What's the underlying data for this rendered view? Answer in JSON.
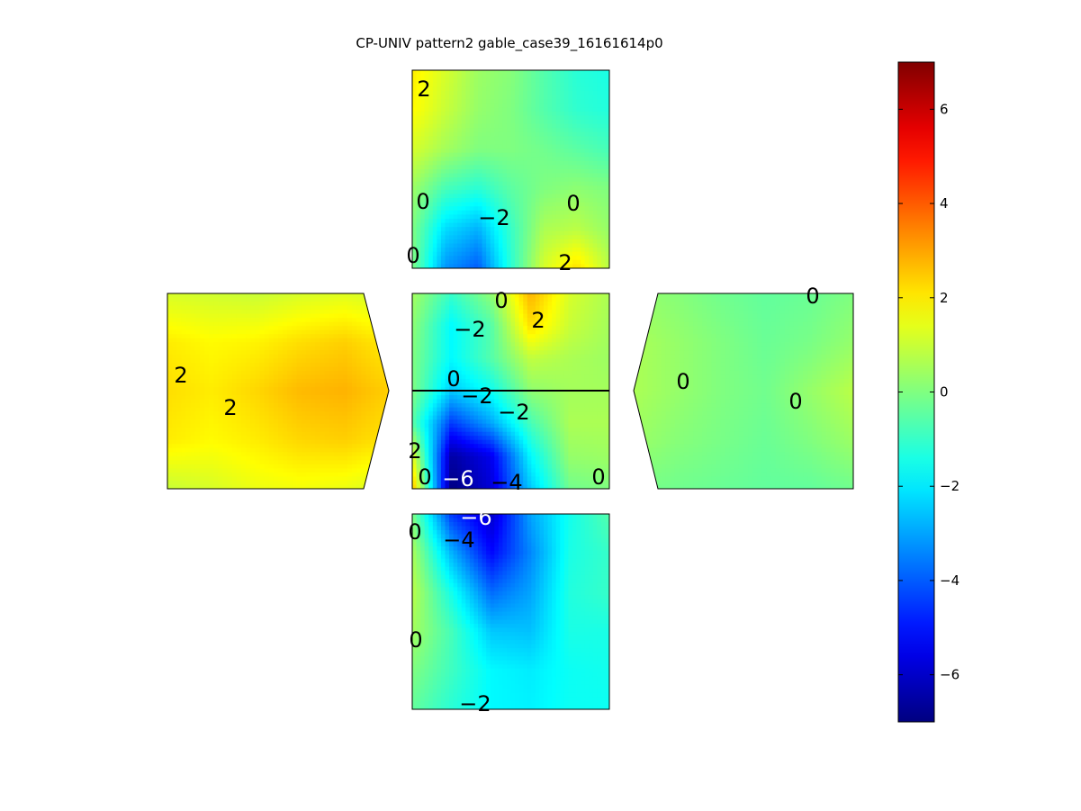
{
  "chart_data": {
    "type": "heatmap",
    "title": "CP-UNIV pattern2 gable_case39_16161614p0",
    "colormap": "jet",
    "clim": [
      -7,
      7
    ],
    "colorbar": {
      "ticks": [
        -6,
        -4,
        -2,
        0,
        2,
        4,
        6
      ],
      "tick_labels": [
        "−6",
        "−4",
        "−2",
        "0",
        "2",
        "4",
        "6"
      ]
    },
    "faces": [
      {
        "name": "top-roof",
        "grid": [
          [
            2.0,
            1.2,
            0.4,
            0.1,
            -0.6,
            -1.2,
            -1.4
          ],
          [
            1.8,
            1.0,
            0.3,
            0.0,
            -0.6,
            -1.1,
            -1.3
          ],
          [
            1.2,
            0.5,
            0.0,
            0.0,
            -0.2,
            -0.5,
            -0.8
          ],
          [
            0.4,
            -0.8,
            -1.2,
            -0.5,
            0.0,
            0.2,
            0.0
          ],
          [
            0.0,
            -2.2,
            -2.8,
            -1.0,
            0.6,
            0.8,
            0.3
          ],
          [
            0.0,
            -3.2,
            -4.0,
            -1.2,
            1.2,
            2.2,
            0.8
          ]
        ],
        "contour_labels": [
          {
            "text": "2",
            "value": 2
          },
          {
            "text": "0",
            "value": 0
          },
          {
            "text": "−2",
            "value": -2
          },
          {
            "text": "0",
            "value": 0
          },
          {
            "text": "0",
            "value": 0
          },
          {
            "text": "2",
            "value": 2
          }
        ]
      },
      {
        "name": "left-gable",
        "grid": [
          [
            1.2,
            1.1,
            1.0,
            1.2,
            1.3,
            1.1
          ],
          [
            2.0,
            1.8,
            1.9,
            2.2,
            2.4,
            2.0
          ],
          [
            2.2,
            2.0,
            2.3,
            2.7,
            2.8,
            2.4
          ],
          [
            2.0,
            1.8,
            2.0,
            2.3,
            2.4,
            2.1
          ],
          [
            1.0,
            1.2,
            1.5,
            1.6,
            1.5,
            1.2
          ]
        ],
        "contour_labels": [
          {
            "text": "2",
            "value": 2
          },
          {
            "text": "2",
            "value": 2
          }
        ]
      },
      {
        "name": "center-front",
        "grid": [
          [
            0.5,
            -1.0,
            0.2,
            2.8,
            1.2,
            0.6
          ],
          [
            0.2,
            -1.8,
            -0.6,
            2.2,
            1.0,
            0.5
          ],
          [
            0.0,
            -1.8,
            -0.6,
            0.9,
            0.6,
            0.4
          ],
          [
            0.0,
            -2.5,
            -1.6,
            0.2,
            0.5,
            0.5
          ],
          [
            -0.5,
            -4.5,
            -3.0,
            -0.8,
            0.6,
            0.6
          ],
          [
            1.5,
            -6.5,
            -5.5,
            -1.8,
            0.3,
            0.4
          ],
          [
            2.8,
            -7.0,
            -5.8,
            -2.5,
            -0.2,
            0.0
          ]
        ],
        "contour_labels": [
          {
            "text": "0",
            "value": 0
          },
          {
            "text": "−2",
            "value": -2
          },
          {
            "text": "2",
            "value": 2
          },
          {
            "text": "0",
            "value": 0
          },
          {
            "text": "−2",
            "value": -2
          },
          {
            "text": "−2",
            "value": -2
          },
          {
            "text": "2",
            "value": 2
          },
          {
            "text": "0",
            "value": 0
          },
          {
            "text": "−6",
            "value": -6
          },
          {
            "text": "−4",
            "value": -4
          },
          {
            "text": "0",
            "value": 0
          }
        ]
      },
      {
        "name": "right-gable",
        "grid": [
          [
            0.3,
            0.1,
            -0.2,
            -0.4,
            -0.3,
            0.0
          ],
          [
            0.6,
            0.3,
            0.0,
            -0.3,
            -0.1,
            0.3
          ],
          [
            0.6,
            0.3,
            0.0,
            -0.2,
            0.3,
            0.8
          ],
          [
            0.4,
            0.1,
            -0.1,
            -0.3,
            0.0,
            0.4
          ],
          [
            -0.1,
            -0.2,
            -0.3,
            -0.4,
            -0.4,
            -0.2
          ]
        ],
        "contour_labels": [
          {
            "text": "0",
            "value": 0
          },
          {
            "text": "0",
            "value": 0
          },
          {
            "text": "0",
            "value": 0
          }
        ]
      },
      {
        "name": "bottom-roof",
        "grid": [
          [
            0.0,
            -4.5,
            -6.0,
            -3.0,
            -1.5,
            -0.6
          ],
          [
            0.6,
            -2.8,
            -5.2,
            -3.4,
            -1.4,
            -1.0
          ],
          [
            0.8,
            -1.5,
            -3.8,
            -3.0,
            -1.3,
            -1.0
          ],
          [
            0.5,
            -0.8,
            -2.5,
            -2.6,
            -1.4,
            -1.4
          ],
          [
            0.0,
            -0.9,
            -1.8,
            -2.0,
            -1.6,
            -1.5
          ],
          [
            -0.4,
            -1.2,
            -1.8,
            -1.9,
            -1.6,
            -1.6
          ]
        ],
        "contour_labels": [
          {
            "text": "−6",
            "value": -6
          },
          {
            "text": "0",
            "value": 0
          },
          {
            "text": "−4",
            "value": -4
          },
          {
            "text": "0",
            "value": 0
          },
          {
            "text": "−2",
            "value": -2
          }
        ]
      }
    ]
  }
}
